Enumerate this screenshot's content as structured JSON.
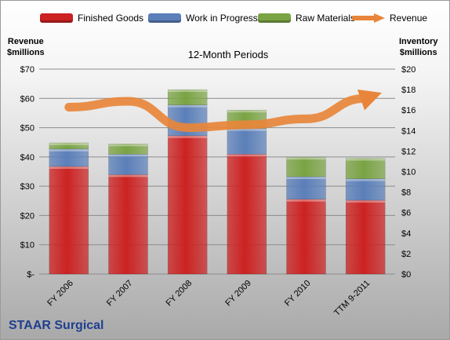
{
  "subtitle": "12-Month Periods",
  "company": "STAAR Surgical",
  "left_axis_title": [
    "Revenue",
    "$millions"
  ],
  "right_axis_title": [
    "Inventory",
    "$millions"
  ],
  "legend": [
    {
      "label": "Finished Goods",
      "color": "#cc2222",
      "kind": "bar"
    },
    {
      "label": "Work in Progress",
      "color": "#5b7fb9",
      "kind": "bar"
    },
    {
      "label": "Raw Materials",
      "color": "#7aa344",
      "kind": "bar"
    },
    {
      "label": "Revenue",
      "color": "#e8853a",
      "kind": "line"
    }
  ],
  "chart_data": {
    "type": "bar",
    "stacked": true,
    "categories": [
      "FY 2006",
      "FY 2007",
      "FY 2008",
      "FY 2009",
      "FY 2010",
      "TTM 9-2011"
    ],
    "series": [
      {
        "name": "Finished Goods",
        "color": "#cc2222",
        "values": [
          10.5,
          9.7,
          13.5,
          11.7,
          7.3,
          7.2
        ]
      },
      {
        "name": "Work in Progress",
        "color": "#5b7fb9",
        "values": [
          1.7,
          2.0,
          3.0,
          2.5,
          2.2,
          2.1
        ]
      },
      {
        "name": "Raw Materials",
        "color": "#7aa344",
        "values": [
          0.6,
          1.0,
          1.5,
          1.8,
          1.9,
          2.0
        ]
      }
    ],
    "line_series": {
      "name": "Revenue",
      "color": "#e8853a",
      "values": [
        57,
        59,
        50,
        51,
        53,
        60
      ]
    },
    "left_axis": {
      "ylim": [
        0,
        70
      ],
      "ticks": [
        "$-",
        "$10",
        "$20",
        "$30",
        "$40",
        "$50",
        "$60",
        "$70"
      ]
    },
    "right_axis": {
      "ylim": [
        0,
        20
      ],
      "ticks": [
        "$0",
        "$2",
        "$4",
        "$6",
        "$8",
        "$10",
        "$12",
        "$14",
        "$16",
        "$18",
        "$20"
      ]
    },
    "grid": true,
    "legend_position": "top"
  }
}
